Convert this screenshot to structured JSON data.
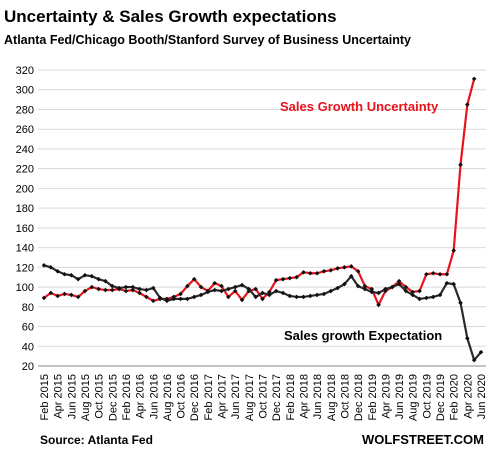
{
  "chart_data": {
    "type": "line",
    "title": "Uncertainty & Sales Growth expectations",
    "subtitle": "Atlanta Fed/Chicago Booth/Stanford Survey of Business Uncertainty",
    "source": "Source: Atlanta Fed",
    "credit": "WOLFSTREET.COM",
    "categories": [
      "Feb 2015",
      null,
      "Apr 2015",
      null,
      "Jun 2015",
      null,
      "Aug 2015",
      null,
      "Oct 2015",
      null,
      "Dec 2015",
      null,
      "Feb 2016",
      null,
      "Apr 2016",
      null,
      "Jun 2016",
      null,
      "Aug 2016",
      null,
      "Oct 2016",
      null,
      "Dec 2016",
      null,
      "Feb 2017",
      null,
      "Apr 2017",
      null,
      "Jun 2017",
      null,
      "Aug 2017",
      null,
      "Oct 2017",
      null,
      "Dec 2017",
      null,
      "Feb 2018",
      null,
      "Apr 2018",
      null,
      "Jun 2018",
      null,
      "Aug 2018",
      null,
      "Oct 2018",
      null,
      "Dec 2018",
      null,
      "Feb 2019",
      null,
      "Apr 2019",
      null,
      "Jun 2019",
      null,
      "Aug 2019",
      null,
      "Oct 2019",
      null,
      "Dec 2019",
      null,
      "Feb 2020",
      null,
      "Apr 2020",
      null,
      "Jun 2020"
    ],
    "series": [
      {
        "name": "Sales Growth Uncertainty",
        "color": "#e8141c",
        "values": [
          89,
          94,
          91,
          93,
          92,
          90,
          96,
          100,
          98,
          97,
          97,
          98,
          96,
          97,
          94,
          90,
          86,
          88,
          88,
          90,
          93,
          101,
          108,
          100,
          96,
          104,
          101,
          90,
          96,
          87,
          96,
          98,
          88,
          95,
          107,
          108,
          109,
          110,
          115,
          114,
          114,
          116,
          117,
          119,
          120,
          121,
          116,
          101,
          98,
          82,
          96,
          100,
          106,
          100,
          95,
          96,
          113,
          114,
          113,
          113,
          137,
          224,
          285,
          311,
          null
        ]
      },
      {
        "name": "Sales growth Expectation",
        "color": "#2b2b2b",
        "values": [
          122,
          120,
          116,
          113,
          112,
          108,
          112,
          111,
          108,
          106,
          101,
          99,
          100,
          100,
          98,
          97,
          99,
          89,
          86,
          88,
          88,
          88,
          90,
          92,
          95,
          97,
          96,
          98,
          100,
          102,
          98,
          90,
          94,
          92,
          96,
          94,
          91,
          90,
          90,
          91,
          92,
          93,
          96,
          99,
          103,
          111,
          101,
          98,
          95,
          94,
          98,
          100,
          103,
          96,
          92,
          88,
          89,
          90,
          92,
          104,
          103,
          84,
          48,
          26,
          34
        ]
      }
    ],
    "ylim": [
      20,
      320
    ],
    "yticks": [
      20,
      40,
      60,
      80,
      100,
      120,
      140,
      160,
      180,
      200,
      220,
      240,
      260,
      280,
      300,
      320
    ],
    "grid": true
  }
}
